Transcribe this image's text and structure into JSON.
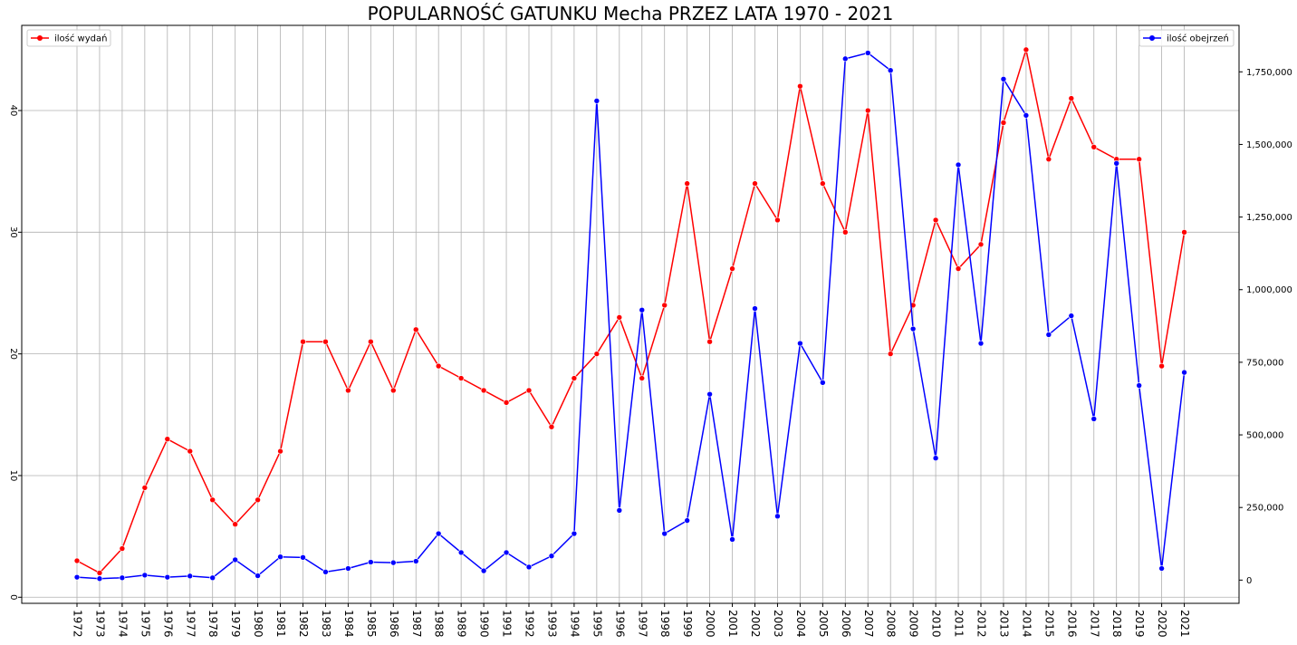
{
  "chart_data": {
    "type": "line",
    "title": "POPULARNOŚĆ GATUNKU Mecha PRZEZ LATA 1970 - 2021",
    "xlabel": "",
    "ylabel": "",
    "grid": true,
    "categories": [
      "1972",
      "1973",
      "1974",
      "1975",
      "1976",
      "1977",
      "1978",
      "1979",
      "1980",
      "1981",
      "1982",
      "1983",
      "1984",
      "1985",
      "1986",
      "1987",
      "1988",
      "1989",
      "1990",
      "1991",
      "1992",
      "1993",
      "1994",
      "1995",
      "1996",
      "1997",
      "1998",
      "1999",
      "2000",
      "2001",
      "2002",
      "2003",
      "2004",
      "2005",
      "2006",
      "2007",
      "2008",
      "2009",
      "2010",
      "2011",
      "2012",
      "2013",
      "2014",
      "2015",
      "2016",
      "2017",
      "2018",
      "2019",
      "2020",
      "2021"
    ],
    "series": [
      {
        "name": "ilość wydań",
        "axis": "left",
        "color": "#ff0000",
        "legend_position": "top-left",
        "values": [
          3,
          2,
          4,
          9,
          13,
          12,
          8,
          6,
          8,
          12,
          21,
          21,
          17,
          21,
          17,
          22,
          19,
          18,
          17,
          16,
          17,
          14,
          18,
          20,
          23,
          18,
          24,
          34,
          21,
          27,
          34,
          31,
          42,
          34,
          30,
          40,
          20,
          24,
          31,
          27,
          29,
          39,
          45,
          36,
          41,
          37,
          36,
          36,
          19,
          30
        ]
      },
      {
        "name": "ilość obejrzeń",
        "axis": "right",
        "color": "#0000ff",
        "legend_position": "top-right",
        "values": [
          10000,
          5000,
          8000,
          17000,
          10000,
          14000,
          8000,
          70000,
          15000,
          80000,
          78000,
          28000,
          40000,
          62000,
          60000,
          65000,
          160000,
          95000,
          32000,
          95000,
          45000,
          83000,
          160000,
          1650000,
          240000,
          930000,
          160000,
          205000,
          640000,
          140000,
          935000,
          220000,
          815000,
          680000,
          1795000,
          1815000,
          1755000,
          865000,
          420000,
          1430000,
          815000,
          1725000,
          1600000,
          845000,
          910000,
          555000,
          1435000,
          670000,
          40000,
          715000
        ]
      }
    ],
    "ylim_left": [
      -0.5,
      47.0
    ],
    "ylim_right": [
      -80000,
      1910000
    ],
    "yticks_left": [
      "0",
      "10",
      "20",
      "30",
      "40"
    ],
    "yticks_right": [
      "0",
      "250,000",
      "500,000",
      "750,000",
      "1,000,000",
      "1,250,000",
      "1,500,000",
      "1,750,000"
    ]
  }
}
